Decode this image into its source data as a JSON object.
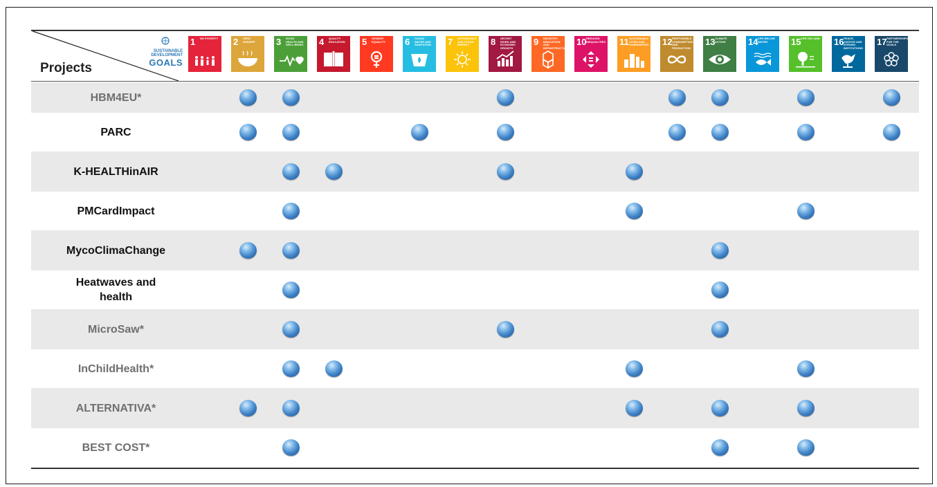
{
  "header": {
    "projects_label": "Projects",
    "sdg_logo": {
      "line1": "SUSTAINABLE",
      "line2": "DEVELOPMENT",
      "goals": "GOALS"
    }
  },
  "goals": [
    {
      "num": "1",
      "title": "No poverty",
      "color": "#e5243b",
      "icon": "family-icon"
    },
    {
      "num": "2",
      "title": "Zero hunger",
      "color": "#dda63a",
      "icon": "bowl-icon"
    },
    {
      "num": "3",
      "title": "Good health and well-being",
      "color": "#4c9f38",
      "icon": "heartbeat-icon"
    },
    {
      "num": "4",
      "title": "Quality education",
      "color": "#c5192d",
      "icon": "book-icon"
    },
    {
      "num": "5",
      "title": "Gender equality",
      "color": "#ff3a21",
      "icon": "gender-icon"
    },
    {
      "num": "6",
      "title": "Clean water and sanitation",
      "color": "#26bde2",
      "icon": "water-drop-icon"
    },
    {
      "num": "7",
      "title": "Affordable and clean energy",
      "color": "#fcc30b",
      "icon": "sun-icon"
    },
    {
      "num": "8",
      "title": "Decent work and economic growth",
      "color": "#a21942",
      "icon": "growth-chart-icon"
    },
    {
      "num": "9",
      "title": "Industry, innovation and infrastructure",
      "color": "#fd6925",
      "icon": "cubes-icon"
    },
    {
      "num": "10",
      "title": "Reduced inequalities",
      "color": "#dd1367",
      "icon": "equality-arrows-icon"
    },
    {
      "num": "11",
      "title": "Sustainable cities and communities",
      "color": "#fd9d24",
      "icon": "city-icon"
    },
    {
      "num": "12",
      "title": "Responsible consumption and production",
      "color": "#bf8b2e",
      "icon": "infinity-icon"
    },
    {
      "num": "13",
      "title": "Climate action",
      "color": "#3f7e44",
      "icon": "eye-globe-icon"
    },
    {
      "num": "14",
      "title": "Life below water",
      "color": "#0a97d9",
      "icon": "fish-icon"
    },
    {
      "num": "15",
      "title": "Life on land",
      "color": "#56c02b",
      "icon": "tree-icon"
    },
    {
      "num": "16",
      "title": "Peace, justice and strong institutions",
      "color": "#00689d",
      "icon": "dove-icon"
    },
    {
      "num": "17",
      "title": "Partnerships for the goals",
      "color": "#19486a",
      "icon": "rings-icon"
    }
  ],
  "projects": [
    {
      "name": "HBM4EU*",
      "style": "gray",
      "shaded": true,
      "goals": [
        2,
        3,
        8,
        12,
        13,
        15,
        17
      ]
    },
    {
      "name": "PARC",
      "style": "dark",
      "shaded": false,
      "goals": [
        2,
        3,
        6,
        8,
        12,
        13,
        15,
        17
      ]
    },
    {
      "name": "K-HEALTHinAIR",
      "style": "dark",
      "shaded": true,
      "goals": [
        3,
        4,
        8,
        11
      ]
    },
    {
      "name": "PMCardImpact",
      "style": "dark",
      "shaded": false,
      "goals": [
        3,
        11,
        15
      ]
    },
    {
      "name": "MycoClimaChange",
      "style": "dark",
      "shaded": true,
      "goals": [
        2,
        3,
        13
      ]
    },
    {
      "name": "Heatwaves and health",
      "style": "dark",
      "shaded": false,
      "goals": [
        3,
        13
      ]
    },
    {
      "name": "MicroSaw*",
      "style": "gray",
      "shaded": true,
      "goals": [
        3,
        8,
        13
      ]
    },
    {
      "name": "InChildHealth*",
      "style": "gray",
      "shaded": false,
      "goals": [
        3,
        4,
        11,
        15
      ]
    },
    {
      "name": "ALTERNATIVA*",
      "style": "gray",
      "shaded": true,
      "goals": [
        2,
        3,
        11,
        13,
        15
      ]
    },
    {
      "name": "BEST COST*",
      "style": "gray",
      "shaded": false,
      "goals": [
        3,
        13,
        15
      ]
    }
  ],
  "colors": {
    "label_dark": "#111111",
    "label_gray": "#6f6f6f",
    "row_shade": "#e9e9e9",
    "dot": "#3f82c6"
  }
}
